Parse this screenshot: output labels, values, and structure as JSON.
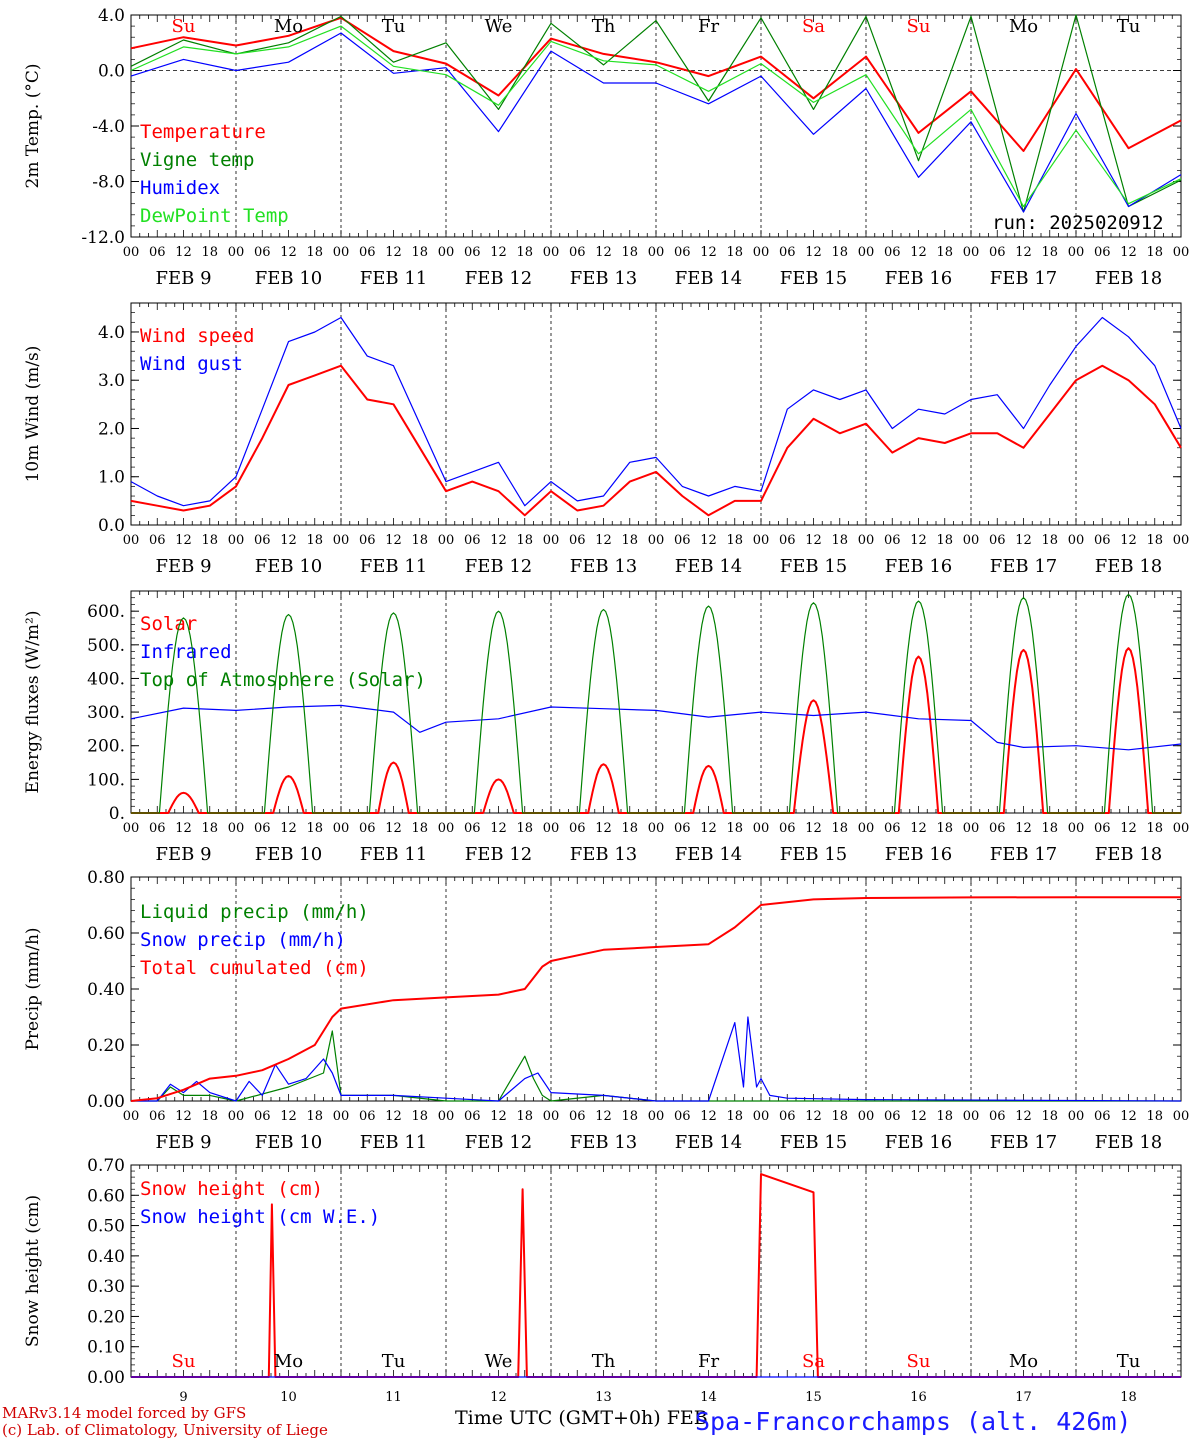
{
  "run_label": "run: 2025020912",
  "footer": {
    "model": "MARv3.14 model forced by GFS",
    "credit": "(c) Lab. of Climatology, University of Liege",
    "xtitle": "Time UTC (GMT+0h) FEB",
    "station": "Spa-Francorchamps (alt. 426m)"
  },
  "colors": {
    "red": "#ff0000",
    "green": "#008000",
    "blue": "#0000ff",
    "lightgreen": "#22e022"
  },
  "hour_ticks": [
    "00",
    "06",
    "12",
    "18"
  ],
  "date_labels": [
    "FEB  9",
    "FEB 10",
    "FEB 11",
    "FEB 12",
    "FEB 13",
    "FEB 14",
    "FEB 15",
    "FEB 16",
    "FEB 17",
    "FEB 18"
  ],
  "weekdays": [
    {
      "label": "Su",
      "weekend": true
    },
    {
      "label": "Mo",
      "weekend": false
    },
    {
      "label": "Tu",
      "weekend": false
    },
    {
      "label": "We",
      "weekend": false
    },
    {
      "label": "Th",
      "weekend": false
    },
    {
      "label": "Fr",
      "weekend": false
    },
    {
      "label": "Sa",
      "weekend": true
    },
    {
      "label": "Su",
      "weekend": true
    },
    {
      "label": "Mo",
      "weekend": false
    },
    {
      "label": "Tu",
      "weekend": false
    }
  ],
  "day_numbers": [
    "9",
    "10",
    "11",
    "12",
    "13",
    "14",
    "15",
    "16",
    "17",
    "18"
  ],
  "chart_data": [
    {
      "type": "line",
      "ylabel": "2m Temp. (°C)",
      "ylim": [
        -12,
        4
      ],
      "yticks": [
        "4.0",
        "0.0",
        "-4.0",
        "-8.0",
        "-12.0"
      ],
      "ytick_values": [
        4,
        0,
        -4,
        -8,
        -12
      ],
      "zero_line": true,
      "series": [
        {
          "name": "Temperature",
          "color": "red",
          "x": [
            0,
            12,
            24,
            36,
            48,
            60,
            72,
            84,
            96,
            108,
            120,
            132,
            144,
            156,
            168,
            180,
            192,
            204,
            216,
            228,
            240
          ],
          "values": [
            1.6,
            2.4,
            1.8,
            2.5,
            3.8,
            1.4,
            0.5,
            -1.8,
            2.3,
            1.2,
            0.6,
            -0.4,
            1.0,
            -2.0,
            1.0,
            -4.5,
            -1.5,
            -5.8,
            0.1,
            -5.6,
            -3.6
          ]
        },
        {
          "name": "Vigne temp",
          "color": "green",
          "x": [
            0,
            12,
            24,
            36,
            48,
            60,
            72,
            84,
            96,
            108,
            120,
            132,
            144,
            156,
            168,
            180,
            192,
            204,
            216,
            228,
            240
          ],
          "values": [
            0.3,
            2.2,
            1.2,
            2.0,
            3.9,
            0.6,
            2.0,
            -2.8,
            3.4,
            0.4,
            3.6,
            -2.2,
            3.8,
            -2.8,
            3.9,
            -6.5,
            3.9,
            -10.2,
            4.0,
            -9.8,
            -7.9
          ]
        },
        {
          "name": "Humidex",
          "color": "blue",
          "x": [
            0,
            12,
            24,
            36,
            48,
            60,
            72,
            84,
            96,
            108,
            120,
            132,
            144,
            156,
            168,
            180,
            192,
            204,
            216,
            228,
            240
          ],
          "values": [
            -0.4,
            0.8,
            0.0,
            0.6,
            2.7,
            -0.2,
            0.2,
            -4.4,
            1.4,
            -0.9,
            -0.9,
            -2.4,
            -0.4,
            -4.6,
            -1.3,
            -7.7,
            -3.7,
            -10.2,
            -3.1,
            -9.8,
            -7.5
          ]
        },
        {
          "name": "DewPoint Temp",
          "color": "lightgreen",
          "x": [
            0,
            12,
            24,
            36,
            48,
            60,
            72,
            84,
            96,
            108,
            120,
            132,
            144,
            156,
            168,
            180,
            192,
            204,
            216,
            228,
            240
          ],
          "values": [
            0.0,
            1.7,
            1.2,
            1.7,
            3.2,
            0.3,
            -0.3,
            -2.5,
            2.1,
            0.7,
            0.4,
            -1.5,
            0.5,
            -2.3,
            -0.3,
            -6.0,
            -2.8,
            -9.8,
            -4.3,
            -9.6,
            -7.8
          ]
        }
      ]
    },
    {
      "type": "line",
      "ylabel": "10m Wind (m/s)",
      "ylim": [
        0,
        4.6
      ],
      "yticks": [
        "4.0",
        "3.0",
        "2.0",
        "1.0",
        "0.0"
      ],
      "ytick_values": [
        4,
        3,
        2,
        1,
        0
      ],
      "series": [
        {
          "name": "Wind speed",
          "color": "red",
          "x": [
            0,
            6,
            12,
            18,
            24,
            30,
            36,
            42,
            48,
            54,
            60,
            66,
            72,
            78,
            84,
            90,
            96,
            102,
            108,
            114,
            120,
            126,
            132,
            138,
            144,
            150,
            156,
            162,
            168,
            174,
            180,
            186,
            192,
            198,
            204,
            210,
            216,
            222,
            228,
            234,
            240
          ],
          "values": [
            0.5,
            0.4,
            0.3,
            0.4,
            0.8,
            1.8,
            2.9,
            3.1,
            3.3,
            2.6,
            2.5,
            1.6,
            0.7,
            0.9,
            0.7,
            0.2,
            0.7,
            0.3,
            0.4,
            0.9,
            1.1,
            0.6,
            0.2,
            0.5,
            0.5,
            1.6,
            2.2,
            1.9,
            2.1,
            1.5,
            1.8,
            1.7,
            1.9,
            1.9,
            1.6,
            2.3,
            3.0,
            3.3,
            3.0,
            2.5,
            1.6
          ]
        },
        {
          "name": "Wind gust",
          "color": "blue",
          "x": [
            0,
            6,
            12,
            18,
            24,
            30,
            36,
            42,
            48,
            54,
            60,
            66,
            72,
            78,
            84,
            90,
            96,
            102,
            108,
            114,
            120,
            126,
            132,
            138,
            144,
            150,
            156,
            162,
            168,
            174,
            180,
            186,
            192,
            198,
            204,
            210,
            216,
            222,
            228,
            234,
            240
          ],
          "values": [
            0.9,
            0.6,
            0.4,
            0.5,
            1.0,
            2.4,
            3.8,
            4.0,
            4.3,
            3.5,
            3.3,
            2.1,
            0.9,
            1.1,
            1.3,
            0.4,
            0.9,
            0.5,
            0.6,
            1.3,
            1.4,
            0.8,
            0.6,
            0.8,
            0.7,
            2.4,
            2.8,
            2.6,
            2.8,
            2.0,
            2.4,
            2.3,
            2.6,
            2.7,
            2.0,
            2.9,
            3.7,
            4.3,
            3.9,
            3.3,
            2.0
          ]
        }
      ]
    },
    {
      "type": "line",
      "ylabel": "Energy fluxes (W/m²)",
      "ylim": [
        0,
        660
      ],
      "yticks": [
        "600.",
        "500.",
        "400.",
        "300.",
        "200.",
        "100.",
        "0."
      ],
      "ytick_values": [
        600,
        500,
        400,
        300,
        200,
        100,
        0
      ],
      "series": [
        {
          "name": "Solar",
          "color": "red",
          "peaks": [
            60,
            110,
            150,
            100,
            145,
            140,
            335,
            465,
            485,
            490
          ]
        },
        {
          "name": "Infrared",
          "color": "blue",
          "x": [
            0,
            12,
            24,
            36,
            48,
            60,
            66,
            72,
            84,
            96,
            108,
            120,
            132,
            144,
            156,
            168,
            180,
            192,
            198,
            204,
            216,
            228,
            240
          ],
          "values": [
            280,
            312,
            305,
            315,
            320,
            300,
            240,
            270,
            280,
            315,
            310,
            305,
            285,
            300,
            290,
            300,
            280,
            275,
            210,
            195,
            200,
            188,
            205
          ]
        },
        {
          "name": "Top of Atmosphere (Solar)",
          "color": "green",
          "peaks": [
            580,
            590,
            595,
            600,
            605,
            615,
            625,
            630,
            640,
            650
          ]
        }
      ]
    },
    {
      "type": "line",
      "ylabel": "Precip (mm/h)",
      "ylim": [
        0,
        0.8
      ],
      "yticks": [
        "0.80",
        "0.60",
        "0.40",
        "0.20",
        "0.00"
      ],
      "ytick_values": [
        0.8,
        0.6,
        0.4,
        0.2,
        0.0
      ],
      "series": [
        {
          "name": "Liquid precip (mm/h)",
          "color": "green",
          "x": [
            0,
            6,
            9,
            12,
            18,
            24,
            36,
            44,
            46,
            48,
            60,
            72,
            84,
            90,
            92,
            94,
            96,
            108,
            120,
            132,
            144,
            168,
            240
          ],
          "values": [
            0,
            0,
            0.05,
            0.02,
            0.02,
            0,
            0.05,
            0.1,
            0.25,
            0.02,
            0.02,
            0,
            0,
            0.16,
            0.08,
            0.02,
            0,
            0.02,
            0,
            0,
            0,
            0,
            0
          ]
        },
        {
          "name": "Snow precip (mm/h)",
          "color": "blue",
          "x": [
            0,
            6,
            9,
            12,
            15,
            18,
            24,
            27,
            30,
            33,
            36,
            40,
            44,
            46,
            48,
            60,
            72,
            84,
            90,
            93,
            96,
            108,
            120,
            132,
            138,
            140,
            141,
            143,
            144,
            146,
            150,
            168,
            240
          ],
          "values": [
            0,
            0,
            0.06,
            0.03,
            0.07,
            0.03,
            0,
            0.07,
            0.02,
            0.13,
            0.06,
            0.08,
            0.15,
            0.1,
            0.02,
            0.02,
            0.01,
            0,
            0.08,
            0.1,
            0.03,
            0.02,
            0,
            0,
            0.28,
            0.05,
            0.3,
            0.05,
            0.08,
            0.02,
            0.01,
            0.005,
            0
          ]
        },
        {
          "name": "Total cumulated (cm)",
          "color": "red",
          "x": [
            0,
            6,
            12,
            18,
            24,
            30,
            36,
            42,
            46,
            48,
            60,
            72,
            84,
            90,
            94,
            96,
            108,
            120,
            132,
            138,
            144,
            156,
            168,
            192,
            216,
            240
          ],
          "values": [
            0,
            0.01,
            0.04,
            0.08,
            0.09,
            0.11,
            0.15,
            0.2,
            0.3,
            0.33,
            0.36,
            0.37,
            0.38,
            0.4,
            0.48,
            0.5,
            0.54,
            0.55,
            0.56,
            0.62,
            0.7,
            0.72,
            0.725,
            0.727,
            0.728,
            0.728
          ]
        }
      ]
    },
    {
      "type": "line",
      "ylabel": "Snow height (cm)",
      "ylim": [
        0,
        0.7
      ],
      "yticks": [
        "0.70",
        "0.60",
        "0.50",
        "0.40",
        "0.30",
        "0.20",
        "0.10",
        "0.00"
      ],
      "ytick_values": [
        0.7,
        0.6,
        0.5,
        0.4,
        0.3,
        0.2,
        0.1,
        0.0
      ],
      "series": [
        {
          "name": "Snow height (cm)",
          "color": "red",
          "x": [
            0,
            31.5,
            32.2,
            33,
            88.5,
            89.5,
            90.5,
            143,
            144,
            156,
            157,
            240
          ],
          "values": [
            0,
            0,
            0.57,
            0,
            0,
            0.62,
            0,
            0,
            0.67,
            0.61,
            0,
            0
          ]
        },
        {
          "name": "Snow height (cm W.E.)",
          "color": "blue",
          "x": [
            0,
            240
          ],
          "values": [
            0,
            0
          ]
        }
      ]
    }
  ]
}
